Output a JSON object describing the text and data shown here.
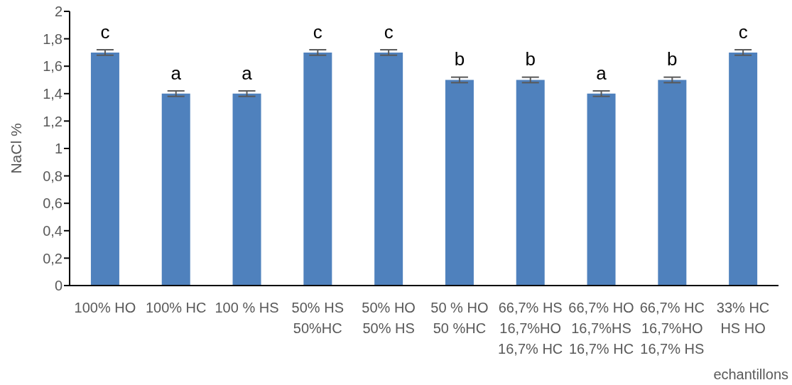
{
  "chart_data": {
    "type": "bar",
    "xlabel": "echantillons",
    "ylabel": "NaCl %",
    "categories": [
      "100% HO",
      "100% HC",
      "100 % HS",
      "50% HS\n50%HC",
      "50% HO\n50% HS",
      "50 % HO\n50 %HC",
      "66,7% HS\n16,7%HO\n16,7% HC",
      "66,7% HO\n16,7%HS\n16,7% HC",
      "66,7% HC\n16,7%HO\n16,7% HS",
      "33% HC\nHS HO"
    ],
    "values": [
      1.7,
      1.4,
      1.4,
      1.7,
      1.7,
      1.5,
      1.5,
      1.4,
      1.5,
      1.7
    ],
    "errors": [
      0.02,
      0.02,
      0.02,
      0.02,
      0.02,
      0.02,
      0.02,
      0.02,
      0.02,
      0.02
    ],
    "value_labels": [
      "c",
      "a",
      "a",
      "c",
      "c",
      "b",
      "b",
      "a",
      "b",
      "c"
    ],
    "color": "#4f81bd",
    "ylim": [
      0,
      2
    ],
    "yticks": [
      0,
      {
        "value": 0.2,
        "label": "0,2"
      },
      {
        "value": 0.4,
        "label": "0,4"
      },
      {
        "value": 0.6,
        "label": "0,6"
      },
      {
        "value": 0.8,
        "label": "0,8"
      },
      1,
      {
        "value": 1.2,
        "label": "1,2"
      },
      {
        "value": 1.4,
        "label": "1,4"
      },
      {
        "value": 1.6,
        "label": "1,6"
      },
      {
        "value": 1.8,
        "label": "1,8"
      },
      2
    ]
  }
}
